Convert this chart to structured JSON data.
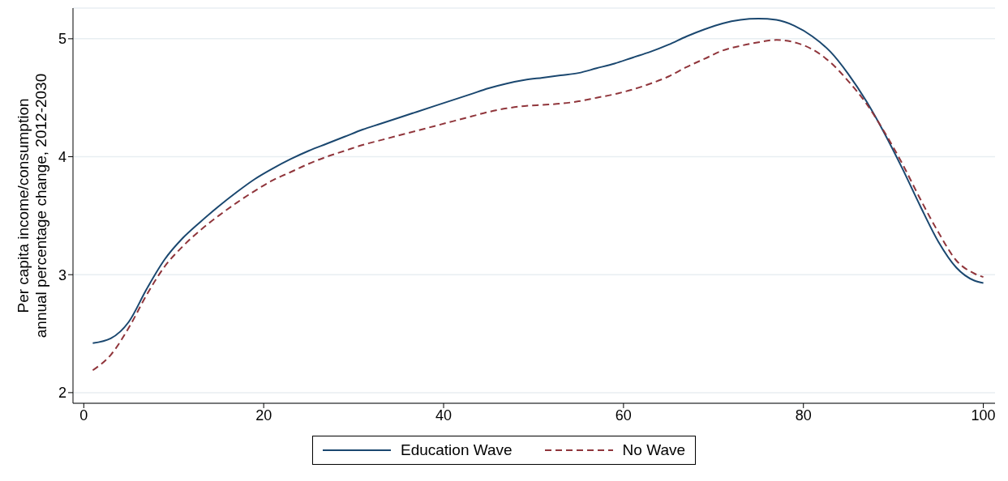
{
  "chart_data": {
    "type": "line",
    "ylabel": "Per capita income/consumption\nannual percentage change, 2012-2030",
    "x": [
      1,
      3,
      5,
      7,
      9,
      11,
      13,
      15,
      17,
      19,
      21,
      23,
      25,
      27,
      29,
      31,
      33,
      35,
      37,
      39,
      41,
      43,
      45,
      47,
      49,
      51,
      53,
      55,
      57,
      59,
      61,
      63,
      65,
      67,
      69,
      71,
      73,
      75,
      77,
      79,
      81,
      83,
      85,
      87,
      89,
      91,
      93,
      95,
      97,
      99,
      100
    ],
    "series": [
      {
        "name": "Education Wave",
        "color": "#1a476f",
        "line_style": "solid",
        "values": [
          2.42,
          2.46,
          2.6,
          2.88,
          3.13,
          3.31,
          3.45,
          3.58,
          3.7,
          3.81,
          3.9,
          3.98,
          4.05,
          4.11,
          4.17,
          4.23,
          4.28,
          4.33,
          4.38,
          4.43,
          4.48,
          4.53,
          4.58,
          4.62,
          4.65,
          4.67,
          4.69,
          4.71,
          4.75,
          4.79,
          4.84,
          4.89,
          4.95,
          5.02,
          5.08,
          5.13,
          5.16,
          5.17,
          5.16,
          5.11,
          5.02,
          4.89,
          4.7,
          4.47,
          4.2,
          3.9,
          3.58,
          3.28,
          3.06,
          2.95,
          2.93
        ]
      },
      {
        "name": "No Wave",
        "color": "#90353b",
        "line_style": "dashed",
        "values": [
          2.19,
          2.32,
          2.55,
          2.83,
          3.07,
          3.24,
          3.38,
          3.5,
          3.61,
          3.71,
          3.8,
          3.87,
          3.94,
          4.0,
          4.05,
          4.1,
          4.14,
          4.18,
          4.22,
          4.26,
          4.3,
          4.34,
          4.38,
          4.41,
          4.43,
          4.44,
          4.45,
          4.47,
          4.5,
          4.53,
          4.57,
          4.62,
          4.68,
          4.76,
          4.83,
          4.9,
          4.94,
          4.97,
          4.99,
          4.97,
          4.91,
          4.8,
          4.64,
          4.45,
          4.21,
          3.94,
          3.64,
          3.36,
          3.12,
          3.01,
          2.98
        ]
      }
    ],
    "xlim": [
      -1.2,
      101.3
    ],
    "xticks": [
      0,
      20,
      40,
      60,
      80,
      100
    ],
    "ylim": [
      1.91,
      5.26
    ],
    "yticks": [
      2,
      3,
      4,
      5
    ],
    "grid": "y",
    "legend": "bottom",
    "marker": "none"
  }
}
